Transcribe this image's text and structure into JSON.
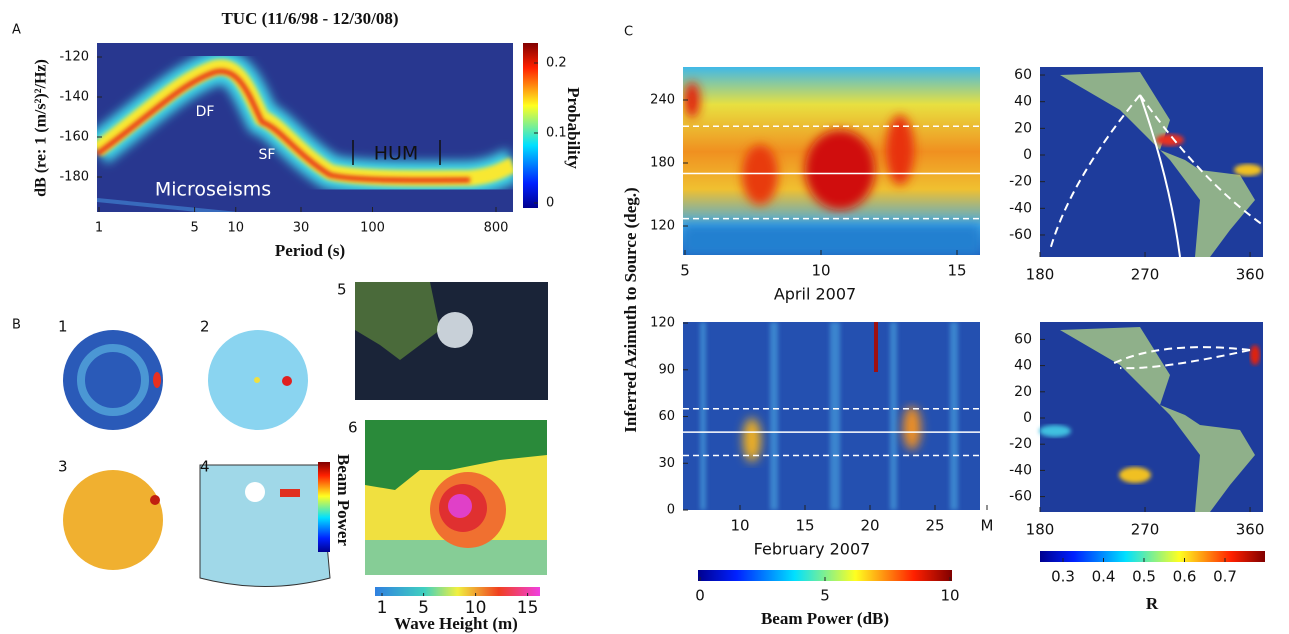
{
  "panel_labels": [
    "A",
    "B",
    "C"
  ],
  "panel_a": {
    "title": "TUC (11/6/98 - 12/30/08)",
    "ylabel": "dB (re: 1 (m/s²)²/Hz)",
    "xlabel": "Period (s)",
    "yticks": [
      -120,
      -140,
      -160,
      -180
    ],
    "xticks": [
      1,
      5,
      10,
      30,
      100,
      800
    ],
    "colorbar_label": "Probability",
    "colorbar_ticks": [
      0.2,
      0.1,
      0
    ],
    "annotations": [
      "DF",
      "SF",
      "HUM",
      "Microseisms"
    ]
  },
  "panel_b": {
    "subpanel_labels": [
      "1",
      "2",
      "3",
      "4",
      "5",
      "6"
    ],
    "colorbar_label": "Beam Power",
    "wave_ticks": [
      1,
      5,
      10,
      15
    ],
    "wave_label": "Wave Height (m)"
  },
  "panel_c": {
    "ylabel": "Inferred Azimuth to Source (deg.)",
    "top": {
      "yticks": [
        240,
        180,
        120
      ],
      "xticks": [
        5,
        10,
        15
      ],
      "xlabel": "April  2007",
      "dashed_lines": [
        215,
        127
      ],
      "solid_line": 170
    },
    "bottom": {
      "yticks": [
        120,
        90,
        60,
        30,
        0
      ],
      "xticks": [
        10,
        15,
        20,
        25,
        {
          "value": 29,
          "label": "M"
        }
      ],
      "xlabel": "February  2007",
      "dashed_lines": [
        65,
        35
      ],
      "solid_line": 50
    },
    "map_yticks": [
      60,
      40,
      20,
      0,
      -20,
      -40,
      -60
    ],
    "map_xticks": [
      180,
      270,
      360
    ],
    "power_colorbar_ticks": [
      0,
      5,
      10
    ],
    "power_colorbar_label": "Beam Power (dB)",
    "r_colorbar_ticks": [
      0.3,
      0.4,
      0.5,
      0.6,
      0.7
    ],
    "r_colorbar_label": "R"
  }
}
